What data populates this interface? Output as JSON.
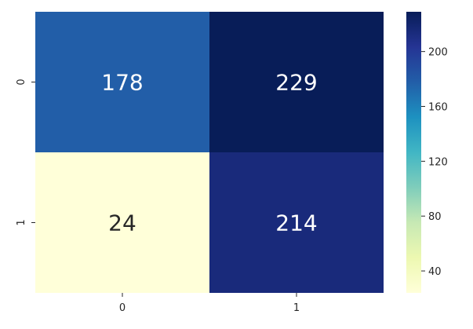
{
  "chart_data": {
    "type": "heatmap",
    "title": "",
    "xlabel": "",
    "ylabel": "",
    "x_categories": [
      "0",
      "1"
    ],
    "y_categories": [
      "0",
      "1"
    ],
    "values": [
      [
        178,
        229
      ],
      [
        24,
        214
      ]
    ],
    "colormap": "YlGnBu",
    "colorbar": {
      "min": 24,
      "max": 229,
      "ticks": [
        40,
        80,
        120,
        160,
        200
      ],
      "tick_labels": [
        "40",
        "80",
        "120",
        "160",
        "200"
      ]
    },
    "grid": false,
    "legend": "right"
  }
}
